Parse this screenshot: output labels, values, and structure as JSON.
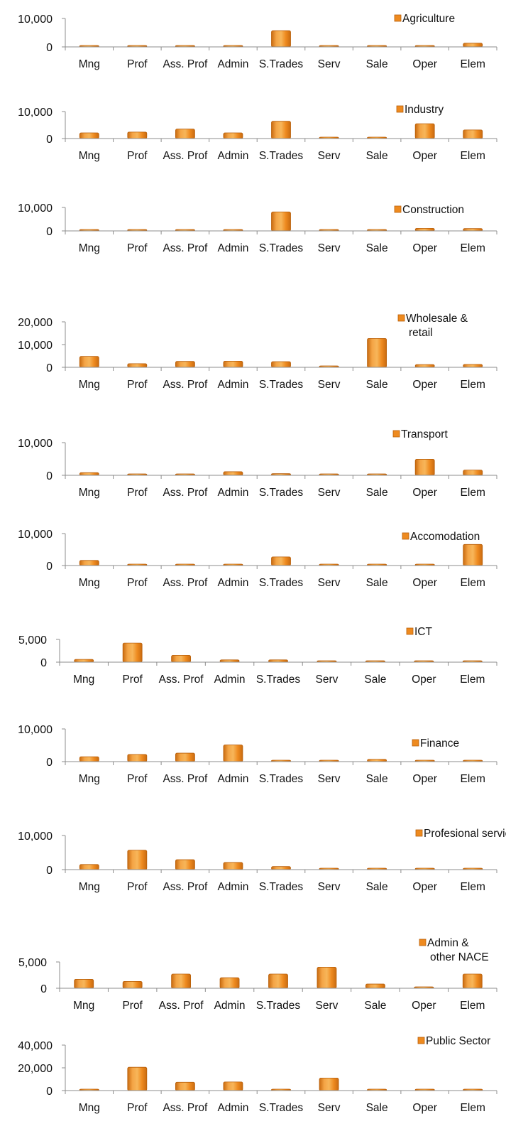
{
  "chart_data": [
    {
      "type": "bar",
      "categories": [
        "Mng",
        "Prof",
        "Ass. Prof",
        "Admin",
        "S.Trades",
        "Serv",
        "Sale",
        "Oper",
        "Elem"
      ],
      "series": [
        {
          "name": "Agriculture",
          "values": [
            60,
            40,
            60,
            50,
            5700,
            0,
            0,
            60,
            1300
          ]
        }
      ],
      "ylim": [
        0,
        10000
      ],
      "yticks": [
        0,
        10000
      ],
      "ytick_labels": [
        "0",
        "10,000"
      ],
      "legend": "top-right"
    },
    {
      "type": "bar",
      "categories": [
        "Mng",
        "Prof",
        "Ass. Prof",
        "Admin",
        "S.Trades",
        "Serv",
        "Sale",
        "Oper",
        "Elem"
      ],
      "series": [
        {
          "name": "Industry",
          "values": [
            2100,
            2400,
            3500,
            2100,
            6400,
            100,
            400,
            5500,
            3200
          ]
        }
      ],
      "ylim": [
        0,
        10000
      ],
      "yticks": [
        0,
        10000
      ],
      "ytick_labels": [
        "0",
        "10,000"
      ],
      "legend": "top-right"
    },
    {
      "type": "bar",
      "categories": [
        "Mng",
        "Prof",
        "Ass. Prof",
        "Admin",
        "S.Trades",
        "Serv",
        "Sale",
        "Oper",
        "Elem"
      ],
      "series": [
        {
          "name": "Construction",
          "values": [
            300,
            100,
            100,
            300,
            8100,
            0,
            0,
            1100,
            1000
          ]
        }
      ],
      "ylim": [
        0,
        10000
      ],
      "yticks": [
        0,
        10000
      ],
      "ytick_labels": [
        "0",
        "10,000"
      ],
      "legend": "top-right"
    },
    {
      "type": "bar",
      "categories": [
        "Mng",
        "Prof",
        "Ass. Prof",
        "Admin",
        "S.Trades",
        "Serv",
        "Sale",
        "Oper",
        "Elem"
      ],
      "series": [
        {
          "name": "Wholesale & retail",
          "values": [
            4800,
            1600,
            2600,
            2700,
            2500,
            50,
            12700,
            1200,
            1300
          ]
        }
      ],
      "ylim": [
        0,
        20000
      ],
      "yticks": [
        0,
        10000,
        20000
      ],
      "ytick_labels": [
        "0",
        "10,000",
        "20,000"
      ],
      "legend": "top-right"
    },
    {
      "type": "bar",
      "categories": [
        "Mng",
        "Prof",
        "Ass. Prof",
        "Admin",
        "S.Trades",
        "Serv",
        "Sale",
        "Oper",
        "Elem"
      ],
      "series": [
        {
          "name": "Transport",
          "values": [
            800,
            0,
            300,
            1100,
            500,
            100,
            200,
            4900,
            1600
          ]
        }
      ],
      "ylim": [
        0,
        10000
      ],
      "yticks": [
        0,
        10000
      ],
      "ytick_labels": [
        "0",
        "10,000"
      ],
      "legend": "top-right"
    },
    {
      "type": "bar",
      "categories": [
        "Mng",
        "Prof",
        "Ass. Prof",
        "Admin",
        "S.Trades",
        "Serv",
        "Sale",
        "Oper",
        "Elem"
      ],
      "series": [
        {
          "name": "Accomodation",
          "values": [
            1600,
            0,
            100,
            400,
            2700,
            400,
            400,
            0,
            6600
          ]
        }
      ],
      "ylim": [
        0,
        10000
      ],
      "yticks": [
        0,
        10000
      ],
      "ytick_labels": [
        "0",
        "10,000"
      ],
      "legend": "top-right"
    },
    {
      "type": "bar",
      "categories": [
        "Mng",
        "Prof",
        "Ass. Prof",
        "Admin",
        "S.Trades",
        "Serv",
        "Sale",
        "Oper",
        "Elem"
      ],
      "series": [
        {
          "name": "ICT",
          "values": [
            600,
            4200,
            1500,
            500,
            500,
            0,
            50,
            100,
            300
          ]
        }
      ],
      "ylim": [
        0,
        5000
      ],
      "yticks": [
        0,
        5000
      ],
      "ytick_labels": [
        "0",
        "5,000"
      ],
      "legend": "top-right"
    },
    {
      "type": "bar",
      "categories": [
        "Mng",
        "Prof",
        "Ass. Prof",
        "Admin",
        "S.Trades",
        "Serv",
        "Sale",
        "Oper",
        "Elem"
      ],
      "series": [
        {
          "name": "Finance",
          "values": [
            1500,
            2200,
            2600,
            5100,
            50,
            0,
            700,
            0,
            50
          ]
        }
      ],
      "ylim": [
        0,
        10000
      ],
      "yticks": [
        0,
        10000
      ],
      "ytick_labels": [
        "0",
        "10,000"
      ],
      "legend": "middle-right"
    },
    {
      "type": "bar",
      "categories": [
        "Mng",
        "Prof",
        "Ass. Prof",
        "Admin",
        "S.Trades",
        "Serv",
        "Sale",
        "Oper",
        "Elem"
      ],
      "series": [
        {
          "name": "Profesional services",
          "values": [
            1500,
            5700,
            2900,
            2100,
            900,
            100,
            100,
            0,
            0
          ]
        }
      ],
      "ylim": [
        0,
        10000
      ],
      "yticks": [
        0,
        10000
      ],
      "ytick_labels": [
        "0",
        "10,000"
      ],
      "legend": "top-right"
    },
    {
      "type": "bar",
      "categories": [
        "Mng",
        "Prof",
        "Ass. Prof",
        "Admin",
        "S.Trades",
        "Serv",
        "Sale",
        "Oper",
        "Elem"
      ],
      "series": [
        {
          "name": "Admin & other NACE",
          "values": [
            1700,
            1300,
            2700,
            2000,
            2700,
            4000,
            800,
            200,
            2700
          ]
        }
      ],
      "ylim": [
        0,
        5000
      ],
      "yticks": [
        0,
        5000
      ],
      "ytick_labels": [
        "0",
        "5,000"
      ],
      "legend": "top-right"
    },
    {
      "type": "bar",
      "categories": [
        "Mng",
        "Prof",
        "Ass. Prof",
        "Admin",
        "S.Trades",
        "Serv",
        "Sale",
        "Oper",
        "Elem"
      ],
      "series": [
        {
          "name": "Public Sector",
          "values": [
            800,
            20500,
            7300,
            7600,
            50,
            11000,
            0,
            200,
            1000
          ]
        }
      ],
      "ylim": [
        0,
        40000
      ],
      "yticks": [
        0,
        20000,
        40000
      ],
      "ytick_labels": [
        "0",
        "20,000",
        "40,000"
      ],
      "legend": "middle-right"
    }
  ],
  "colors": {
    "bar_fill": "#ee8a1f",
    "bar_fill_light": "#f7b65a",
    "bar_edge": "#b85f0a",
    "axis": "#8c8c8c"
  }
}
